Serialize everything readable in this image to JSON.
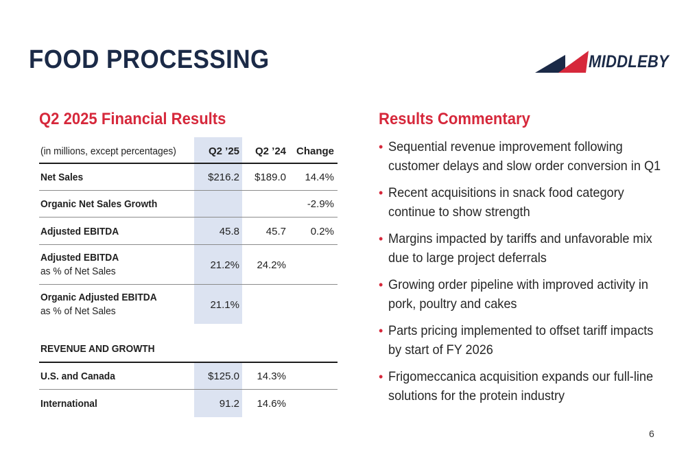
{
  "title": "FOOD PROCESSING",
  "logo": {
    "text": "MIDDLEBY",
    "colors": {
      "navy": "#1b2a47",
      "red": "#d6283b"
    }
  },
  "financials": {
    "heading": "Q2 2025 Financial Results",
    "columns": {
      "label": "(in millions, except percentages)",
      "q2_25": "Q2 ’25",
      "q2_24": "Q2 ’24",
      "change": "Change"
    },
    "rows": [
      {
        "label": "Net Sales",
        "sub": "",
        "q2_25": "$216.2",
        "q2_24": "$189.0",
        "change": "14.4%"
      },
      {
        "label": "Organic Net Sales Growth",
        "sub": "",
        "q2_25": "",
        "q2_24": "",
        "change": "-2.9%"
      },
      {
        "label": "Adjusted EBITDA",
        "sub": "",
        "q2_25": "45.8",
        "q2_24": "45.7",
        "change": "0.2%"
      },
      {
        "label": "Adjusted EBITDA",
        "sub": "as % of Net Sales",
        "q2_25": "21.2%",
        "q2_24": "24.2%",
        "change": ""
      },
      {
        "label": "Organic Adjusted EBITDA",
        "sub": "as % of Net Sales",
        "q2_25": "21.1%",
        "q2_24": "",
        "change": ""
      }
    ],
    "revenue_heading": "REVENUE AND GROWTH",
    "revenue_rows": [
      {
        "label": "U.S. and Canada",
        "value": "$125.0",
        "growth": "14.3%"
      },
      {
        "label": "International",
        "value": "91.2",
        "growth": "14.6%"
      }
    ]
  },
  "commentary": {
    "heading": "Results Commentary",
    "bullets": [
      "Sequential revenue improvement following customer delays and slow order conversion in Q1",
      "Recent acquisitions in snack food category continue to show strength",
      "Margins impacted by tariffs and unfavorable mix due to large project deferrals",
      "Growing order pipeline with improved activity in pork, poultry and cakes",
      "Parts pricing implemented to offset tariff impacts by start of FY 2026",
      "Frigomeccanica acquisition expands our full-line solutions for the protein industry"
    ]
  },
  "page_number": "6"
}
